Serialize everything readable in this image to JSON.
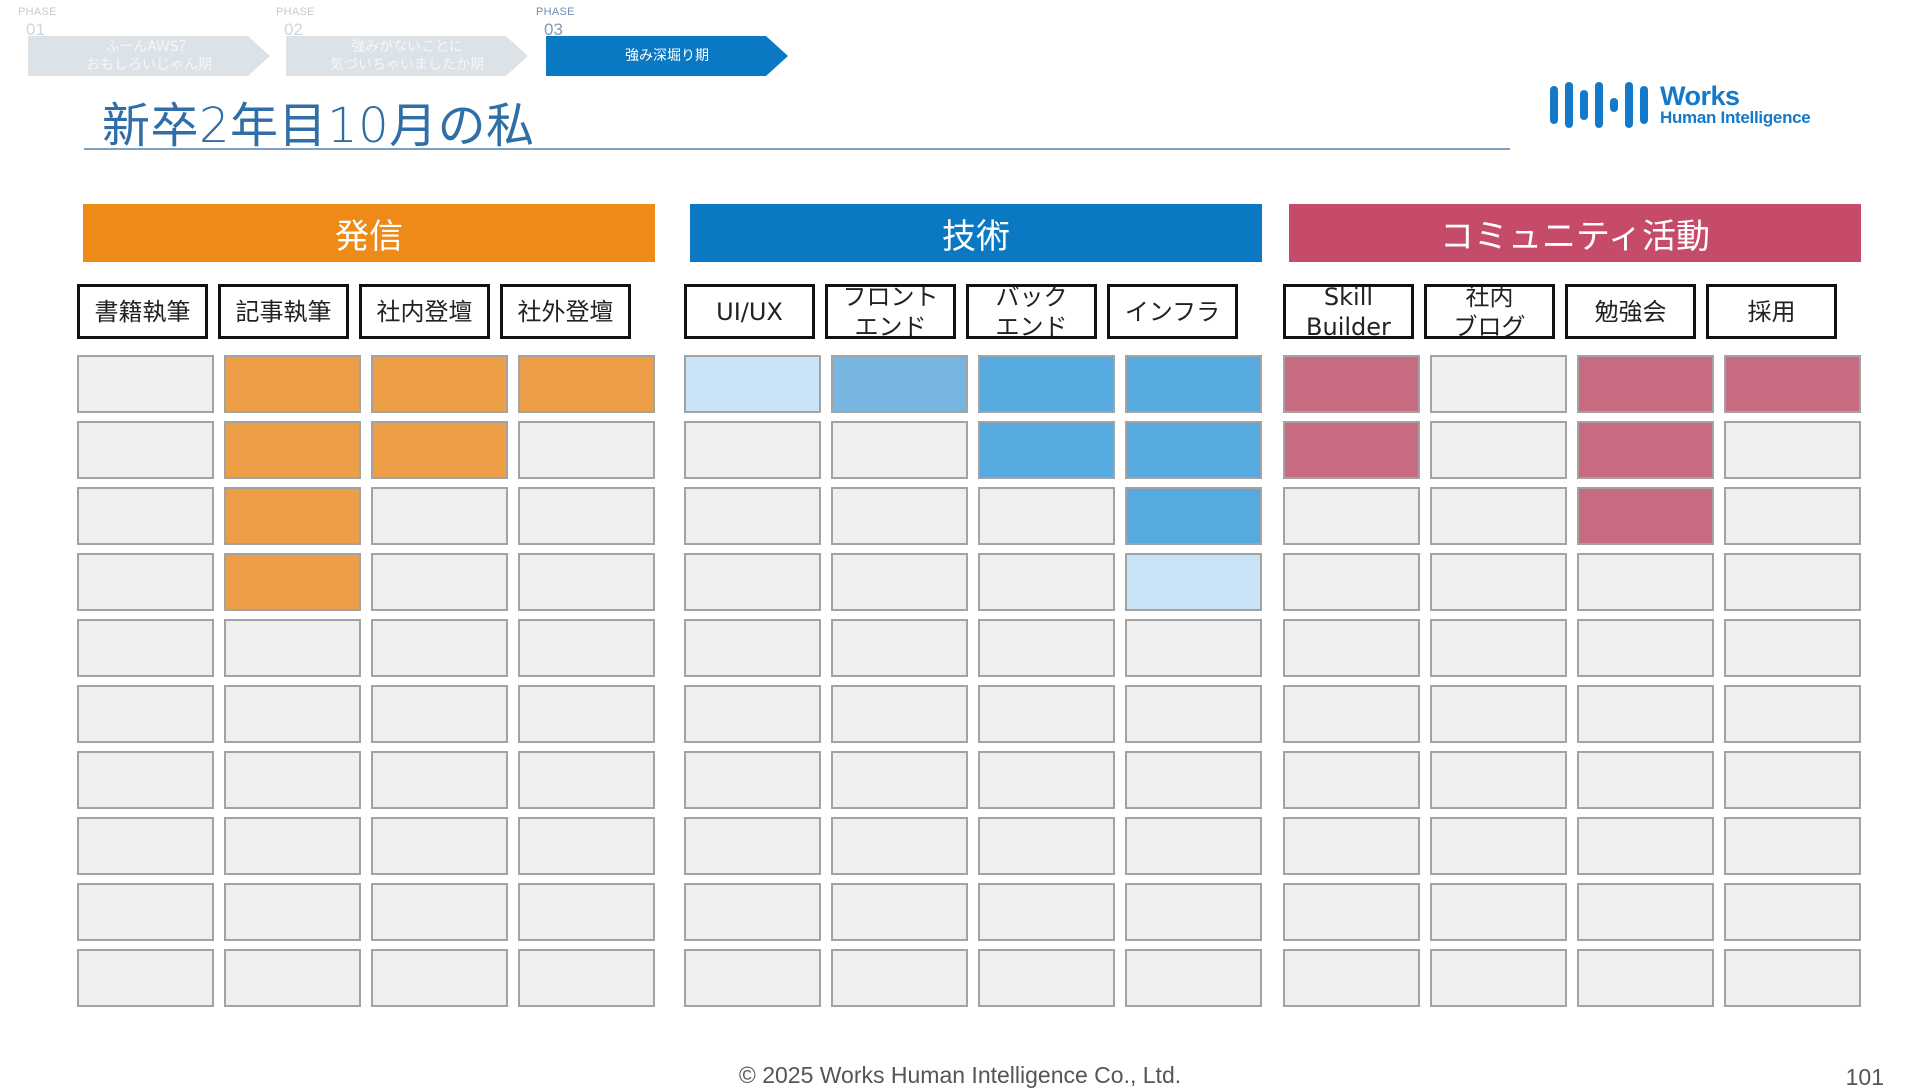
{
  "phases": [
    {
      "caption": "PHASE",
      "num": "01",
      "label": "ふーんAWS？\nおもしろいじゃん期",
      "active": false
    },
    {
      "caption": "PHASE",
      "num": "02",
      "label": "強みがないことに\n気づいちゃいましたか期",
      "active": false
    },
    {
      "caption": "PHASE",
      "num": "03",
      "label": "強み深堀り期",
      "active": true
    }
  ],
  "title": "新卒2年目10月の私",
  "logo": {
    "line1": "Works",
    "line2": "Human Intelligence"
  },
  "sections": [
    {
      "name": "発信",
      "color": "#ee8a17",
      "subs": [
        "書籍執筆",
        "記事執筆",
        "社内登壇",
        "社外登壇"
      ],
      "fill_colors": {
        "light": "#c8e3f5",
        "mid": "#ed9f47",
        "strong": "#ed9f47"
      },
      "levels": [
        0,
        4,
        2,
        1
      ]
    },
    {
      "name": "技術",
      "color": "#0b78c3",
      "subs": [
        "UI/UX",
        "フロント\nエンド",
        "バック\nエンド",
        "インフラ"
      ],
      "fill_colors": {
        "light": "#c8e3f5",
        "mid": "#76b6e0",
        "strong": "#56aae0"
      },
      "levels": [
        1,
        1,
        2,
        4
      ]
    },
    {
      "name": "コミュニティ活動",
      "color": "#c54b69",
      "subs": [
        "Skill\nBuilder",
        "社内\nブログ",
        "勉強会",
        "採用"
      ],
      "fill_colors": {
        "light": "#c8e3f5",
        "mid": "#c96b80",
        "strong": "#c96b80"
      },
      "levels": [
        2,
        0,
        3,
        1
      ]
    }
  ],
  "footer": "© 2025 Works Human Intelligence Co., Ltd.",
  "page_number": "101"
}
